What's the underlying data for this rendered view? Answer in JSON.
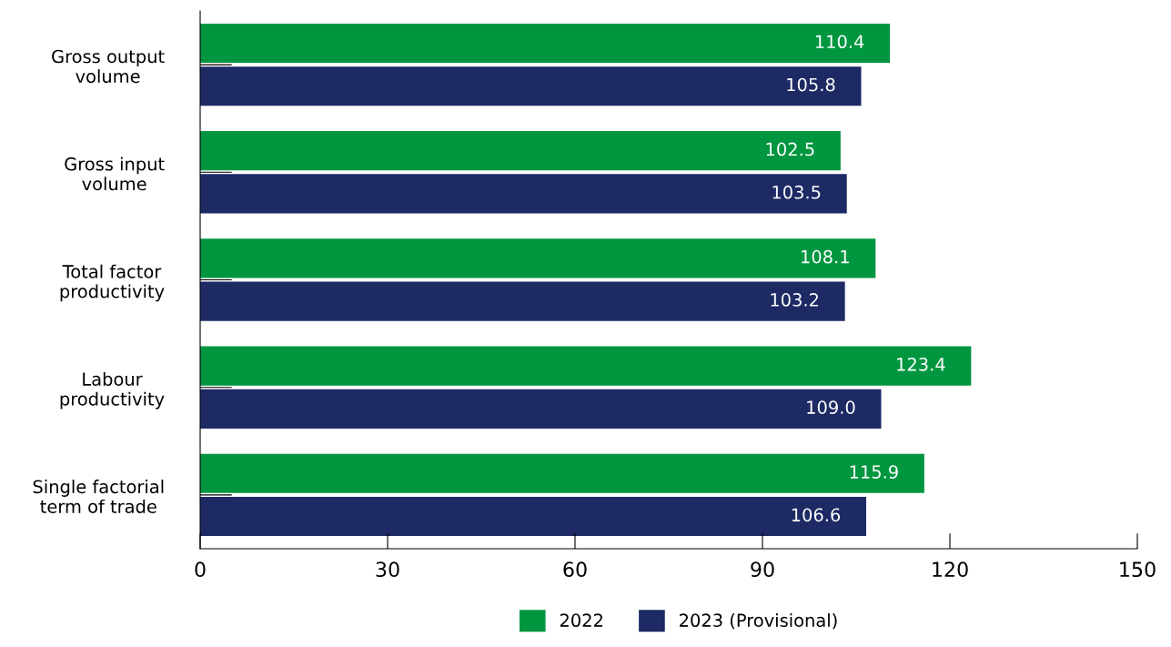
{
  "chart_data": {
    "type": "bar",
    "orientation": "horizontal",
    "categories": [
      "Gross output\nvolume",
      "Gross input\nvolume",
      "Total factor\nproductivity",
      "Labour\nproductivity",
      "Single factorial\nterm of trade"
    ],
    "series": [
      {
        "name": "2022",
        "color": "#009640",
        "values": [
          110.4,
          102.5,
          108.1,
          123.4,
          115.9
        ]
      },
      {
        "name": "2023 (Provisional)",
        "color": "#1d2a64",
        "values": [
          105.8,
          103.5,
          103.2,
          109.0,
          106.6
        ],
        "value_labels": [
          "105.8",
          "103.5",
          "103.2",
          "109.0",
          "106.6"
        ]
      }
    ],
    "xlim": [
      0,
      150
    ],
    "xticks": [
      0,
      30,
      60,
      90,
      120,
      150
    ],
    "data_labels": true,
    "legend": "bottom",
    "grid": false
  }
}
